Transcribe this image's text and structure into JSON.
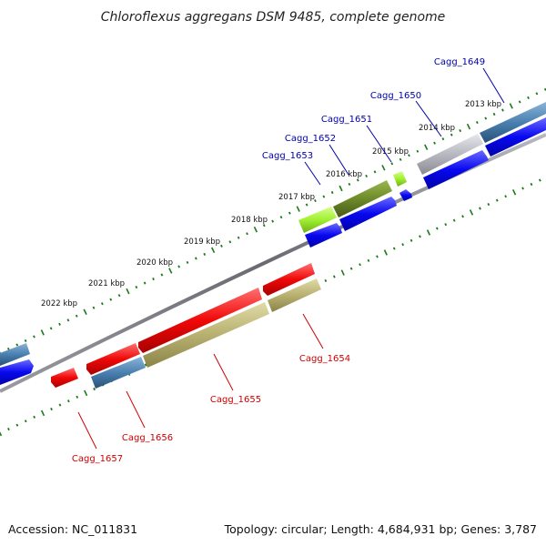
{
  "title": "Chloroflexus aggregans DSM 9485, complete genome",
  "footer": {
    "accession": "Accession: NC_011831",
    "summary": "Topology: circular; Length: 4,684,931 bp; Genes: 3,787"
  },
  "kbp_ticks": [
    "2013 kbp",
    "2014 kbp",
    "2015 kbp",
    "2016 kbp",
    "2017 kbp",
    "2018 kbp",
    "2019 kbp",
    "2020 kbp",
    "2021 kbp",
    "2022 kbp"
  ],
  "gene_labels": {
    "forward": [
      "Cagg_1649",
      "Cagg_1650",
      "Cagg_1651",
      "Cagg_1652",
      "Cagg_1653"
    ],
    "reverse": [
      "Cagg_1654",
      "Cagg_1655",
      "Cagg_1656",
      "Cagg_1657"
    ]
  },
  "colors": {
    "label_forward": "#0000aa",
    "label_reverse": "#cc0000",
    "tick": "#1a7a1a",
    "backbone": "#7a7a80",
    "gene_blue": "#0a0af0",
    "gene_red": "#f00a0a",
    "gene_steel": "#4a80b0",
    "gene_grey": "#b8b8c0",
    "gene_lime": "#a0f030",
    "gene_olive": "#6e8a2a",
    "gene_khaki": "#b8b070"
  }
}
